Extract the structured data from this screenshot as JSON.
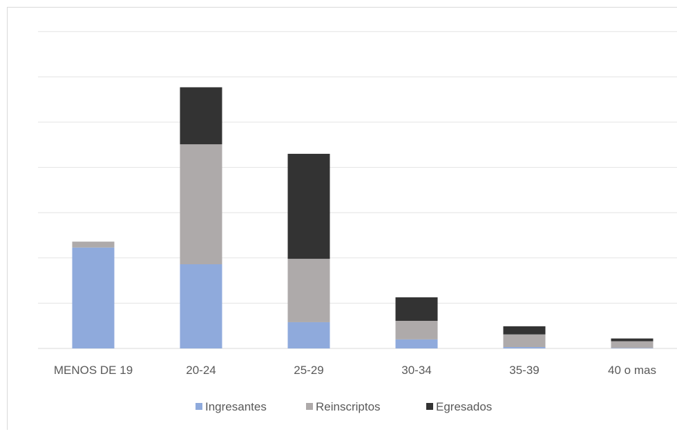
{
  "chart_data": {
    "type": "bar",
    "stacked": true,
    "categories": [
      "MENOS DE 19",
      "20-24",
      "25-29",
      "30-34",
      "35-39",
      "40 o mas"
    ],
    "series": [
      {
        "name": "Ingresantes",
        "color": "#8faadc",
        "values": [
          2.23,
          1.86,
          0.58,
          0.2,
          0.03,
          0.01
        ]
      },
      {
        "name": "Reinscriptos",
        "color": "#aeaaaa",
        "values": [
          0.13,
          2.65,
          1.4,
          0.41,
          0.28,
          0.15
        ]
      },
      {
        "name": "Egresados",
        "color": "#333333",
        "values": [
          0.0,
          1.26,
          2.32,
          0.52,
          0.18,
          0.06
        ]
      }
    ],
    "ylim": [
      0,
      7
    ],
    "gridlines": [
      1,
      2,
      3,
      4,
      5,
      6,
      7
    ],
    "grid": true,
    "y_tick_labels_visible": false,
    "legend": "bottom",
    "title": "",
    "xlabel": "",
    "ylabel": ""
  }
}
